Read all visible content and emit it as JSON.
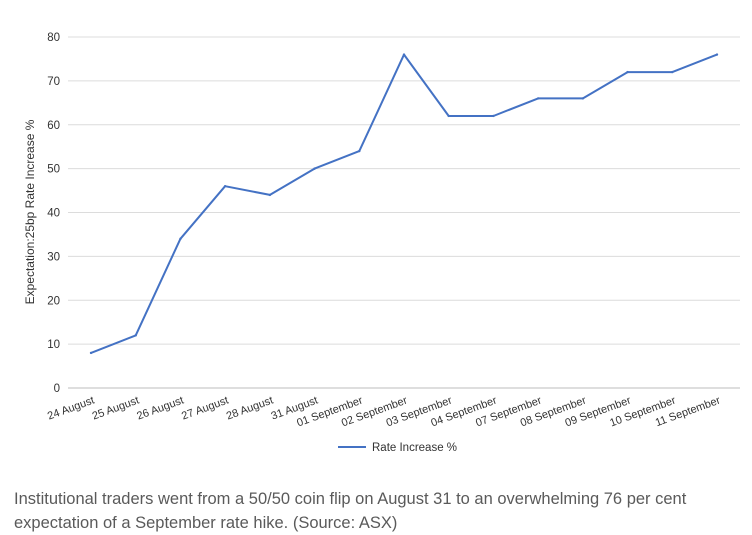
{
  "chart_data": {
    "type": "line",
    "categories": [
      "24 August",
      "25 August",
      "26 August",
      "27 August",
      "28 August",
      "31 August",
      "01 September",
      "02 September",
      "03 September",
      "04 September",
      "07 September",
      "08 September",
      "09 September",
      "10 September",
      "11 September"
    ],
    "series": [
      {
        "name": "Rate Increase %",
        "values": [
          8,
          12,
          34,
          46,
          44,
          50,
          54,
          76,
          62,
          62,
          66,
          66,
          72,
          72,
          76
        ],
        "color": "#4472c4"
      }
    ],
    "ylabel": "Expectation:25bp Rate Increase %",
    "xlabel": "",
    "ylim": [
      0,
      80
    ],
    "yticks": [
      0,
      10,
      20,
      30,
      40,
      50,
      60,
      70,
      80
    ],
    "grid": true,
    "legend_position": "bottom"
  },
  "caption": "Institutional traders went from a 50/50 coin flip on August 31 to an overwhelming 76 per cent expectation of a September rate hike. (Source: ASX)"
}
